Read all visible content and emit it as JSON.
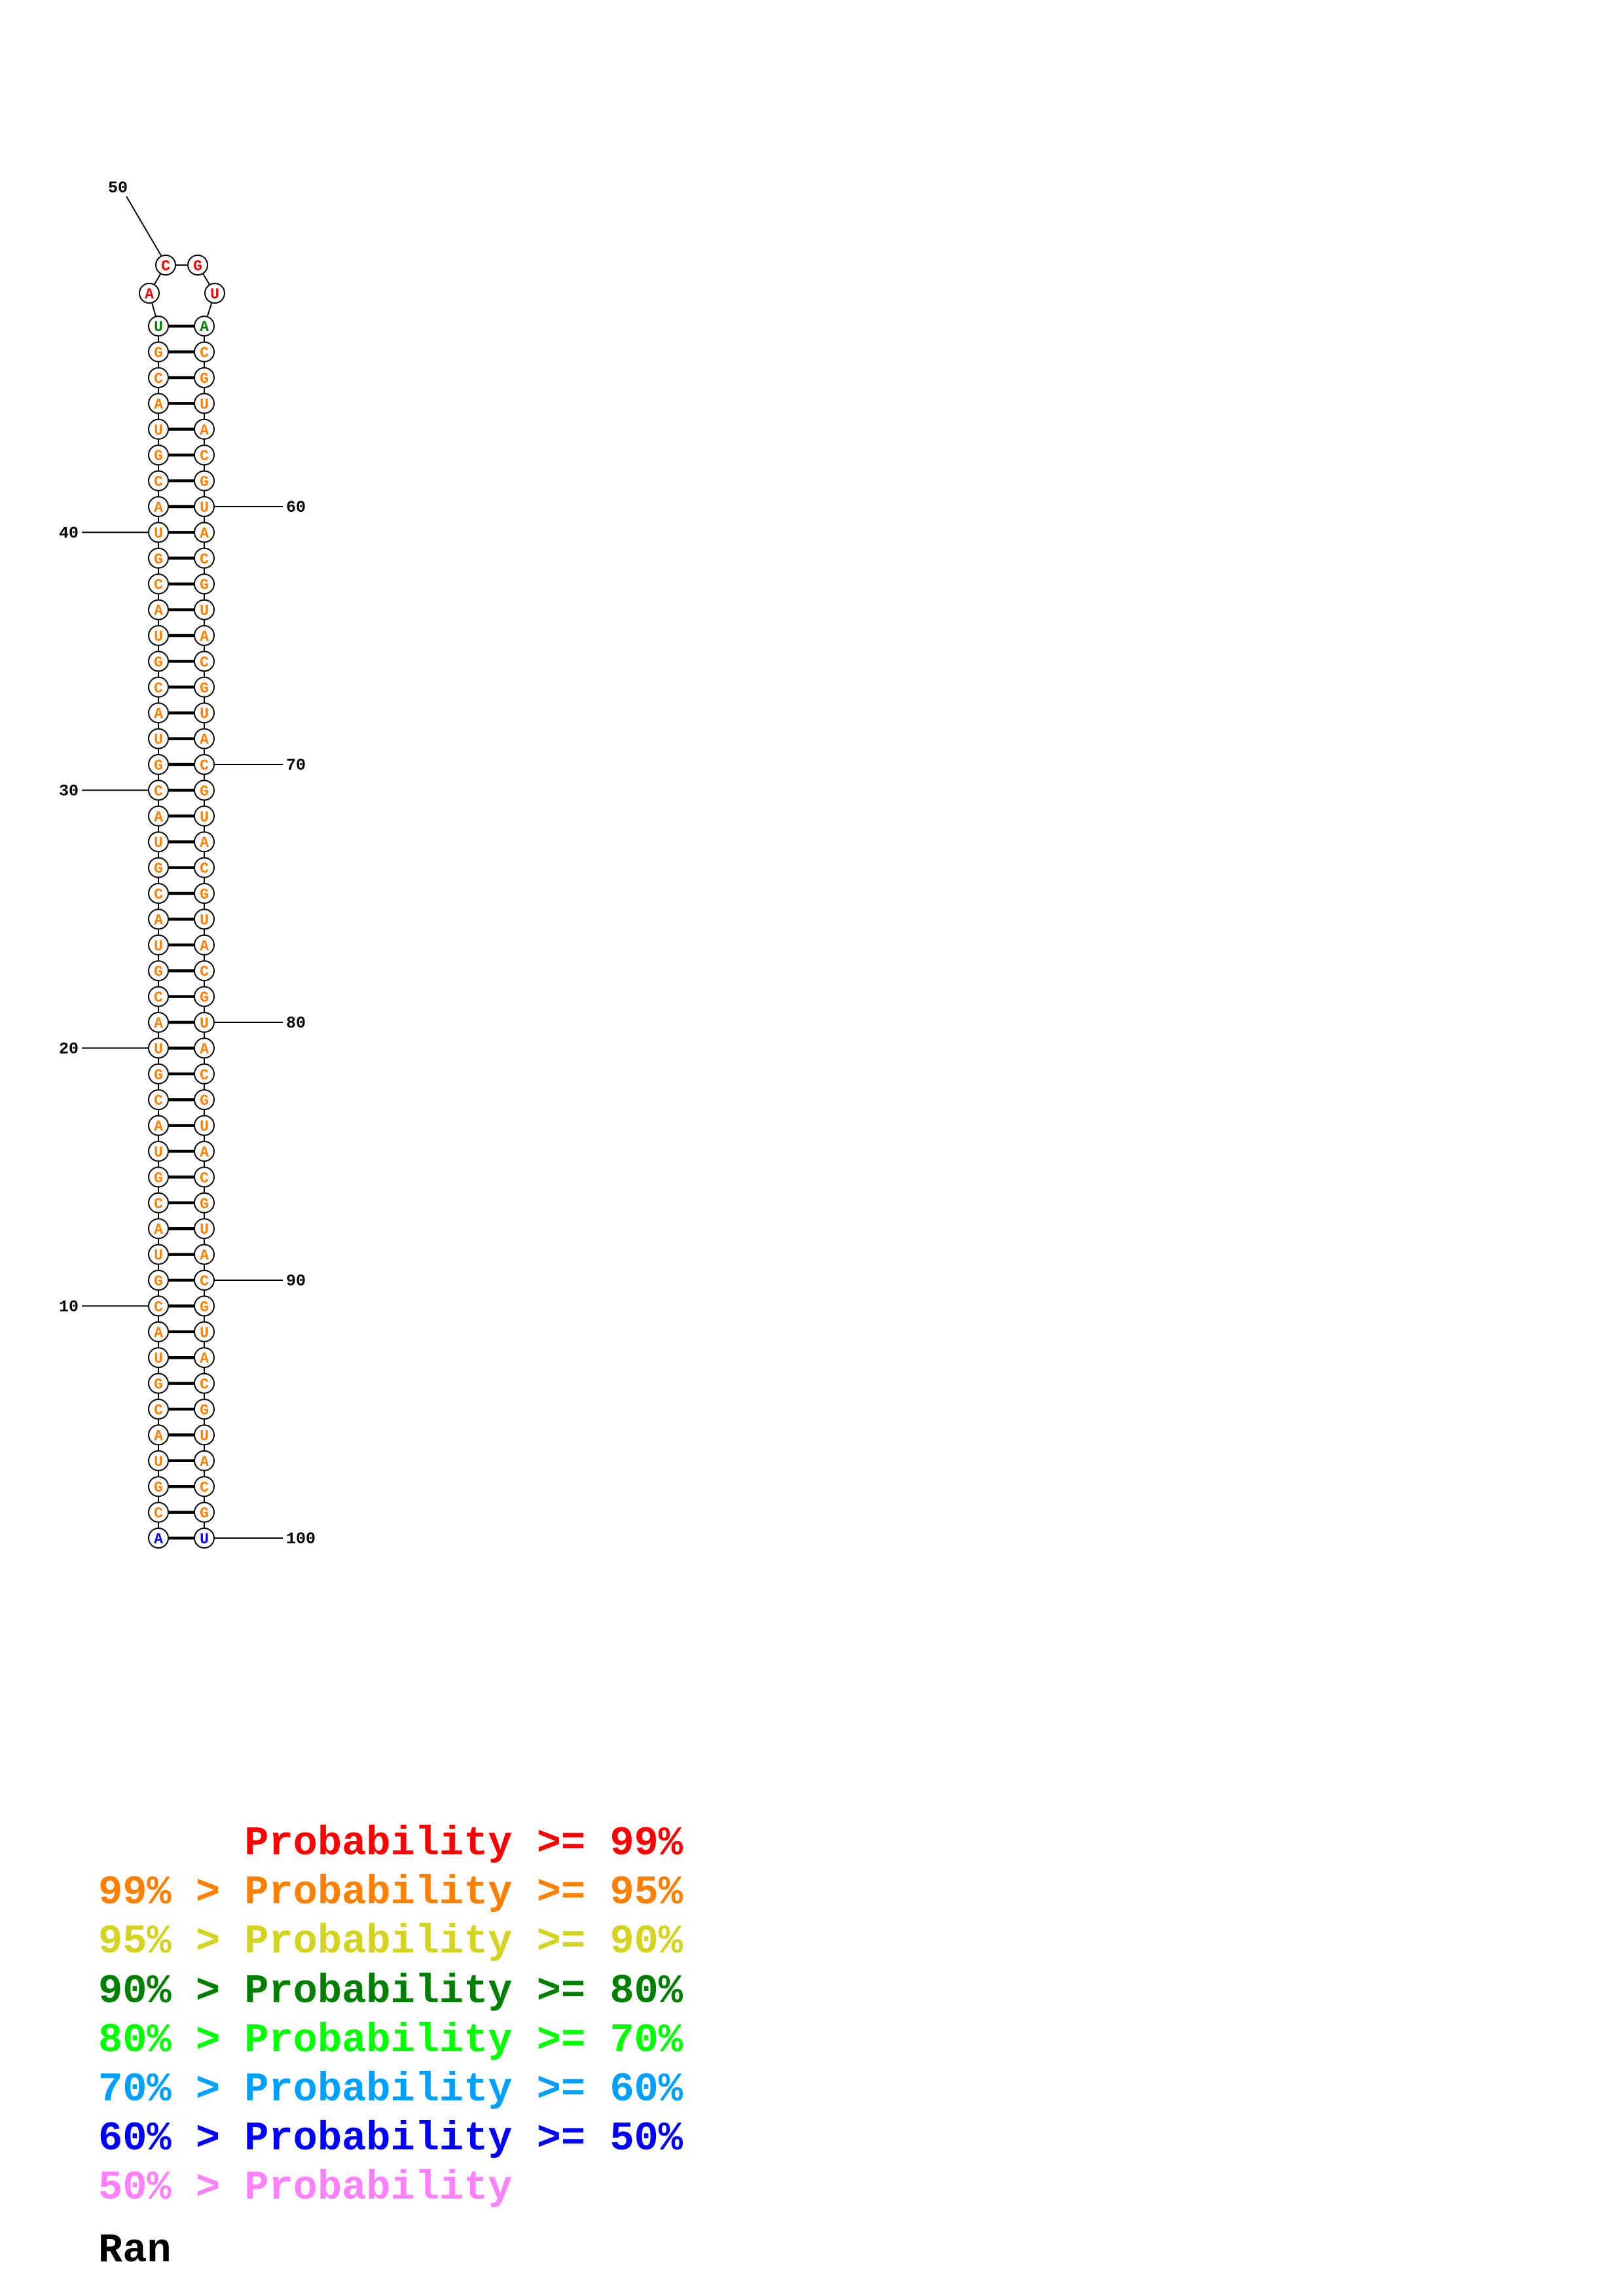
{
  "structure": {
    "sequence": "ACGUACGUACGUACGUACGUACGUACGUACGUACGUACGUACGUACGUACGUACGUACGUACGUACGUACGUACGUACGUACGUACGUACGUACGUACGU",
    "left_arm": {
      "start": 1,
      "end": 48
    },
    "loop": {
      "start": 49,
      "end": 52
    },
    "right_arm": {
      "start": 53,
      "end": 100
    },
    "position_labels": [
      "10",
      "20",
      "30",
      "40",
      "50",
      "60",
      "70",
      "80",
      "90",
      "100"
    ],
    "base_colors": {
      "1": "#0000ff",
      "100": "#0000ff",
      "48": "#008000",
      "53": "#008000",
      "49": "#ff0000",
      "50": "#ff0000",
      "51": "#ff0000",
      "52": "#ff0000",
      "default": "#ff8000"
    }
  },
  "legend": [
    {
      "prefix": "",
      "text": "Probability >= 99%",
      "color": "#ff0000"
    },
    {
      "prefix": "99% > ",
      "text": "Probability >= 95%",
      "color": "#ff8000"
    },
    {
      "prefix": "95% > ",
      "text": "Probability >= 90%",
      "color": "#d4d420"
    },
    {
      "prefix": "90% > ",
      "text": "Probability >= 80%",
      "color": "#008000"
    },
    {
      "prefix": "80% > ",
      "text": "Probability >= 70%",
      "color": "#00ff00"
    },
    {
      "prefix": "70% > ",
      "text": "Probability >= 60%",
      "color": "#00a0ff"
    },
    {
      "prefix": "60% > ",
      "text": "Probability >= 50%",
      "color": "#0000ff"
    },
    {
      "prefix": "50% > ",
      "text": "Probability",
      "color": "#ff80ff"
    }
  ],
  "credit": "Ran"
}
